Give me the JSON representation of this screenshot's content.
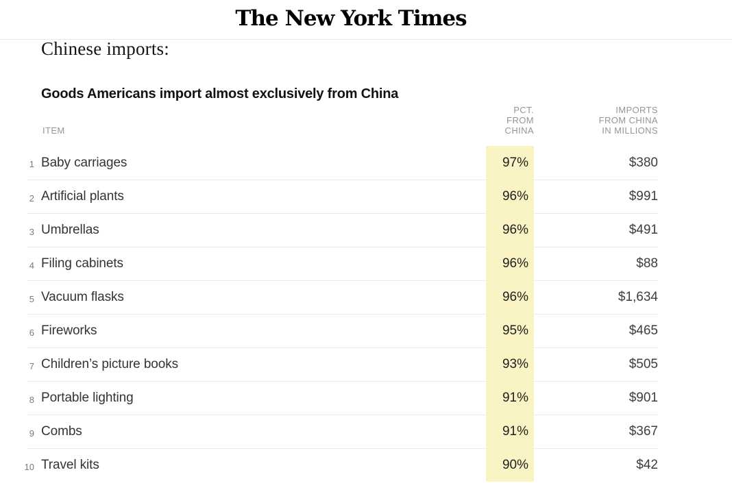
{
  "masthead": {
    "logo_text": "The New York Times"
  },
  "heading": "Chinese imports:",
  "table": {
    "title": "Goods Americans import almost exclusively from China",
    "columns": {
      "item": "ITEM",
      "pct_lines": [
        "PCT. FROM",
        "CHINA"
      ],
      "imports_lines": [
        "IMPORTS",
        "FROM CHINA",
        "IN MILLIONS"
      ]
    },
    "rows": [
      {
        "rank": "1",
        "item": "Baby carriages",
        "pct": "97%",
        "imports": "$380"
      },
      {
        "rank": "2",
        "item": "Artificial plants",
        "pct": "96%",
        "imports": "$991"
      },
      {
        "rank": "3",
        "item": "Umbrellas",
        "pct": "96%",
        "imports": "$491"
      },
      {
        "rank": "4",
        "item": "Filing cabinets",
        "pct": "96%",
        "imports": "$88"
      },
      {
        "rank": "5",
        "item": "Vacuum flasks",
        "pct": "96%",
        "imports": "$1,634"
      },
      {
        "rank": "6",
        "item": "Fireworks",
        "pct": "95%",
        "imports": "$465"
      },
      {
        "rank": "7",
        "item": "Children’s picture books",
        "pct": "93%",
        "imports": "$505"
      },
      {
        "rank": "8",
        "item": "Portable lighting",
        "pct": "91%",
        "imports": "$901"
      },
      {
        "rank": "9",
        "item": "Combs",
        "pct": "91%",
        "imports": "$367"
      },
      {
        "rank": "10",
        "item": "Travel kits",
        "pct": "90%",
        "imports": "$42"
      }
    ]
  },
  "colors": {
    "highlight": "#FAF3C4",
    "top_rule": "#E8E8E8",
    "row_rule": "#E9E9E9",
    "header_text": "#959595",
    "item_text": "#333333",
    "value_text": "#3D3D3D"
  },
  "chart_data": {
    "type": "table",
    "title": "Goods Americans import almost exclusively from China",
    "columns": [
      "ITEM",
      "PCT. FROM CHINA",
      "IMPORTS FROM CHINA IN MILLIONS"
    ],
    "rows": [
      [
        "Baby carriages",
        97,
        380
      ],
      [
        "Artificial plants",
        96,
        991
      ],
      [
        "Umbrellas",
        96,
        491
      ],
      [
        "Filing cabinets",
        96,
        88
      ],
      [
        "Vacuum flasks",
        96,
        1634
      ],
      [
        "Fireworks",
        95,
        465
      ],
      [
        "Children’s picture books",
        93,
        505
      ],
      [
        "Portable lighting",
        91,
        901
      ],
      [
        "Combs",
        91,
        367
      ],
      [
        "Travel kits",
        90,
        42
      ]
    ],
    "notes": "PCT. FROM CHINA column highlighted yellow; imports values in millions of dollars"
  }
}
